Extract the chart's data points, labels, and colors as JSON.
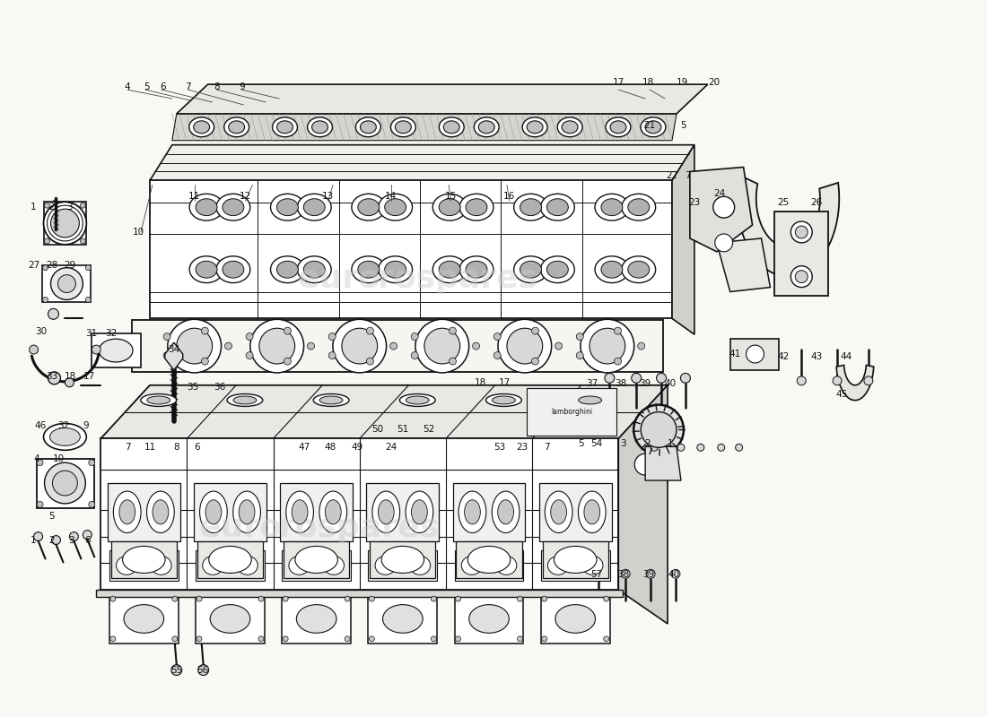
{
  "bg_color": "#f8f8f5",
  "line_color": "#111111",
  "figsize": [
    11.0,
    8.0
  ],
  "dpi": 100,
  "watermark1": "euro",
  "watermark2": "rospares",
  "wm_color": "#cccccc",
  "wm_alpha": 0.45
}
